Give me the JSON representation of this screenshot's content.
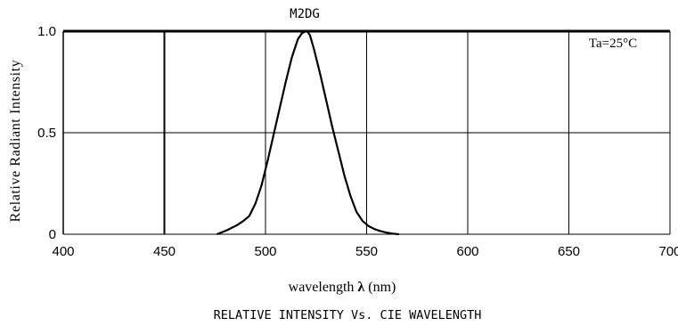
{
  "chart_data": {
    "type": "line",
    "title": "M2DG",
    "xlabel_prefix": "wavelength ",
    "xlabel_symbol": "λ",
    "xlabel_suffix": " (nm)",
    "ylabel": "Relative Radiant Intensity",
    "caption": "RELATIVE INTENSITY Vs. CIE WAVELENGTH",
    "annotation": "Ta=25°C",
    "xlim": [
      400,
      700
    ],
    "ylim": [
      0,
      1.0
    ],
    "x_ticks": [
      400,
      450,
      500,
      550,
      600,
      650,
      700
    ],
    "x_tick_labels": [
      "400",
      "450",
      "500",
      "550",
      "600",
      "650",
      "700"
    ],
    "y_ticks": [
      0,
      0.5,
      1.0
    ],
    "y_tick_labels": [
      "0",
      "0.5",
      "1.0"
    ],
    "grid": true,
    "series": [
      {
        "x": [
          476,
          481,
          486,
          489,
          492,
          495,
          498,
          501,
          504,
          507,
          510,
          513,
          516,
          518,
          520,
          521,
          522,
          524,
          527,
          530,
          533,
          536,
          539,
          542,
          545,
          548,
          551,
          554,
          557,
          560,
          563,
          566
        ],
        "y": [
          0.0,
          0.02,
          0.045,
          0.065,
          0.09,
          0.15,
          0.24,
          0.36,
          0.49,
          0.62,
          0.75,
          0.87,
          0.96,
          0.99,
          1.0,
          0.995,
          0.98,
          0.91,
          0.79,
          0.66,
          0.53,
          0.41,
          0.29,
          0.19,
          0.11,
          0.065,
          0.04,
          0.025,
          0.015,
          0.008,
          0.003,
          0.0
        ],
        "color": "#000000"
      }
    ]
  }
}
